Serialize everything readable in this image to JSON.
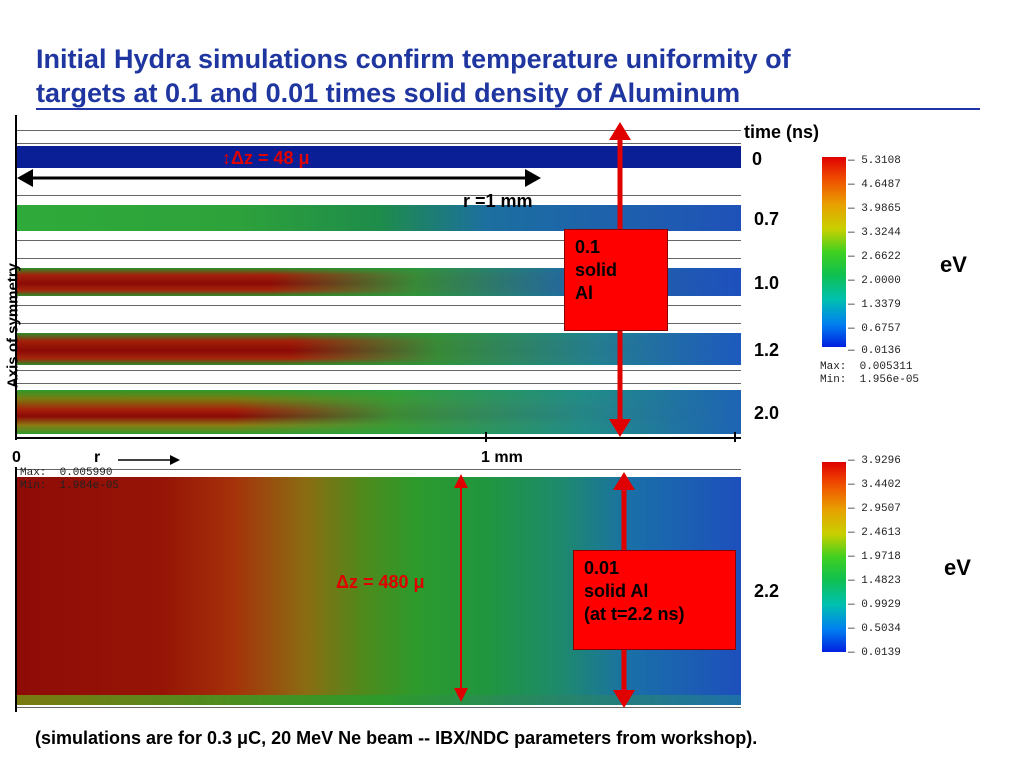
{
  "title": {
    "line1": "Initial Hydra simulations confirm temperature uniformity of",
    "line2": "targets at 0.1 and 0.01 times solid density of Aluminum"
  },
  "top_panel": {
    "time_header": "time (ns)",
    "times": [
      "0",
      "0.7",
      "1.0",
      "1.2",
      "2.0"
    ],
    "dz_label": "↕Δz = 48 μ",
    "r_label": "r =1 mm",
    "axis_label": "Axis of symmetry",
    "x_zero": "0",
    "x_r": "r",
    "x_1mm": "1 mm",
    "box_text": [
      "0.1",
      "solid",
      "Al"
    ]
  },
  "bottom_panel": {
    "time": "2.2",
    "dz_label": "Δz = 480 μ",
    "max_min": "Max:  0.005990\nMin:  1.984e-05",
    "box_text": [
      "0.01",
      "solid Al",
      "(at t=2.2 ns)"
    ]
  },
  "colorbar_top": {
    "ticks": [
      "5.3108",
      "4.6487",
      "3.9865",
      "3.3244",
      "2.6622",
      "2.0000",
      "1.3379",
      "0.6757",
      "0.0136"
    ],
    "unit": "eV",
    "max_min": "Max:  0.005311\nMin:  1.956e-05"
  },
  "colorbar_bottom": {
    "ticks": [
      "3.9296",
      "3.4402",
      "2.9507",
      "2.4613",
      "1.9718",
      "1.4823",
      "0.9929",
      "0.5034",
      "0.0139"
    ],
    "unit": "eV"
  },
  "footnote": "(simulations are for 0.3 μC, 20 MeV Ne beam -- IBX/NDC parameters from workshop).",
  "colors": {
    "title": "#1f36a0",
    "annotation_red": "#e00000",
    "box_red": "#ff0000",
    "band_blue": "#0a1e96"
  }
}
